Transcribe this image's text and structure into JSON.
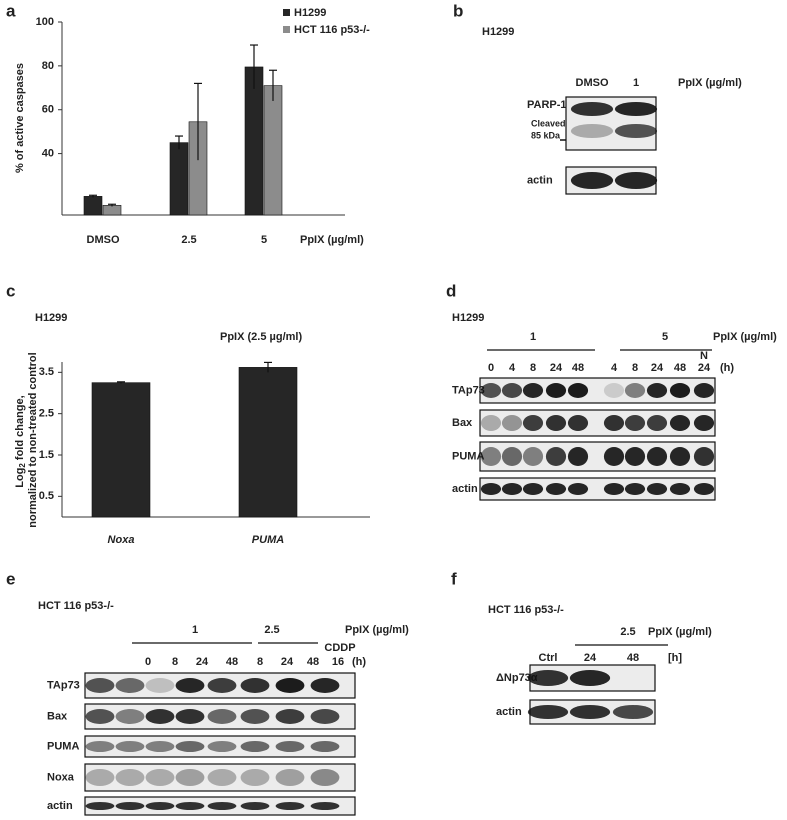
{
  "chart_data": [
    {
      "type": "bar",
      "panel_label": "a",
      "ylabel": "% of active caspases",
      "xlabel": "PpIX (µg/ml)",
      "categories": [
        "DMSO",
        "2.5",
        "5"
      ],
      "series": [
        {
          "name": "H1299",
          "color": "#262626",
          "values": [
            20.5,
            45,
            79.5
          ],
          "errors": [
            0.5,
            3,
            10
          ]
        },
        {
          "name": "HCT 116 p53-/-",
          "color": "#8c8c8c",
          "values": [
            16.4,
            54.5,
            71
          ],
          "errors": [
            0.5,
            17.5,
            7
          ]
        }
      ],
      "ylim": [
        12,
        100
      ],
      "yticks": [
        40,
        60,
        80,
        100
      ],
      "grid": false
    },
    {
      "type": "bar",
      "panel_label": "c",
      "cell_line": "H1299",
      "subtitle": "PpIX (2.5 µg/ml)",
      "ylabel": {
        "base": "Log",
        "subscript": "2",
        "rest": " fold change,",
        "line2": "normalized to non-treated control"
      },
      "categories": [
        "Noxa",
        "PUMA"
      ],
      "values": [
        3.25,
        3.62
      ],
      "errors": [
        0.02,
        0.12
      ],
      "color": "#262626",
      "ylim": [
        0,
        3.75
      ],
      "yticks": [
        0.5,
        1.5,
        2.5,
        3.5
      ],
      "grid": false
    }
  ],
  "blots": [
    {
      "panel_label": "b",
      "cell_line": "H1299",
      "treatment": "PpIX (µg/ml)",
      "groups": [],
      "lanes": [
        "DMSO",
        "1"
      ],
      "rows": [
        "PARP-1",
        "actin"
      ],
      "band_note": [
        "Cleaved",
        "85 kDa"
      ]
    },
    {
      "panel_label": "d",
      "cell_line": "H1299",
      "treatment": "PpIX (µg/ml)",
      "groups": [
        "1",
        "5"
      ],
      "lanes": [
        "0",
        "4",
        "8",
        "24",
        "48",
        "4",
        "8",
        "24",
        "48",
        "24"
      ],
      "lane_note": "N",
      "time_unit": "(h)",
      "rows": [
        "TAp73",
        "Bax",
        "PUMA",
        "actin"
      ]
    },
    {
      "panel_label": "e",
      "cell_line": "HCT 116 p53-/-",
      "treatment": "PpIX (µg/ml)",
      "groups": [
        "1",
        "2.5"
      ],
      "lanes": [
        "0",
        "8",
        "24",
        "48",
        "8",
        "24",
        "48",
        "16"
      ],
      "lane_note": "CDDP",
      "time_unit": "(h)",
      "rows": [
        "TAp73",
        "Bax",
        "PUMA",
        "Noxa",
        "actin"
      ]
    },
    {
      "panel_label": "f",
      "cell_line": "HCT 116 p53-/-",
      "treatment": "PpIX (µg/ml)",
      "groups": [
        "2.5"
      ],
      "lanes": [
        "Ctrl",
        "24",
        "48"
      ],
      "time_unit": "[h]",
      "rows": [
        "ΔNp73α",
        "actin"
      ]
    }
  ]
}
